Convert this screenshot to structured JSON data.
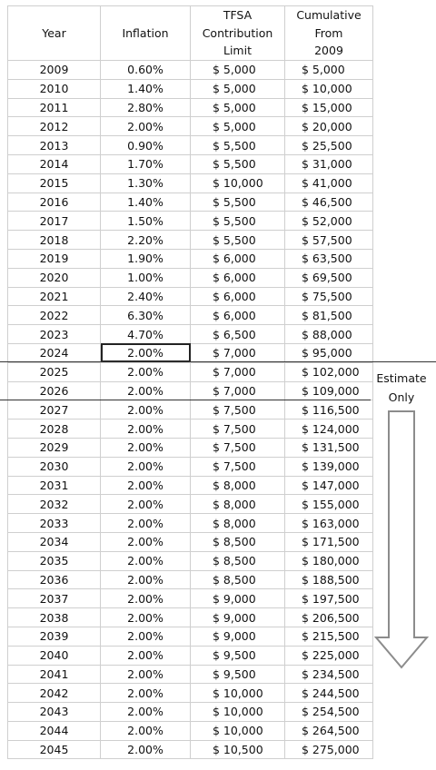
{
  "headers": {
    "year": "Year",
    "inflation": "Inflation",
    "limit": [
      "TFSA",
      "Contribution",
      "Limit"
    ],
    "cumulative": [
      "Cumulative",
      "From",
      "2009"
    ]
  },
  "rows": [
    {
      "year": "2009",
      "inflation": "0.60%",
      "limit": "$ 5,000",
      "cumulative": "$ 5,000"
    },
    {
      "year": "2010",
      "inflation": "1.40%",
      "limit": "$ 5,000",
      "cumulative": "$ 10,000"
    },
    {
      "year": "2011",
      "inflation": "2.80%",
      "limit": "$ 5,000",
      "cumulative": "$ 15,000"
    },
    {
      "year": "2012",
      "inflation": "2.00%",
      "limit": "$ 5,000",
      "cumulative": "$ 20,000"
    },
    {
      "year": "2013",
      "inflation": "0.90%",
      "limit": "$ 5,500",
      "cumulative": "$ 25,500"
    },
    {
      "year": "2014",
      "inflation": "1.70%",
      "limit": "$ 5,500",
      "cumulative": "$ 31,000"
    },
    {
      "year": "2015",
      "inflation": "1.30%",
      "limit": "$ 10,000",
      "cumulative": "$ 41,000"
    },
    {
      "year": "2016",
      "inflation": "1.40%",
      "limit": "$ 5,500",
      "cumulative": "$ 46,500"
    },
    {
      "year": "2017",
      "inflation": "1.50%",
      "limit": "$ 5,500",
      "cumulative": "$ 52,000"
    },
    {
      "year": "2018",
      "inflation": "2.20%",
      "limit": "$ 5,500",
      "cumulative": "$ 57,500"
    },
    {
      "year": "2019",
      "inflation": "1.90%",
      "limit": "$ 6,000",
      "cumulative": "$ 63,500"
    },
    {
      "year": "2020",
      "inflation": "1.00%",
      "limit": "$ 6,000",
      "cumulative": "$ 69,500"
    },
    {
      "year": "2021",
      "inflation": "2.40%",
      "limit": "$ 6,000",
      "cumulative": "$ 75,500"
    },
    {
      "year": "2022",
      "inflation": "6.30%",
      "limit": "$ 6,000",
      "cumulative": "$ 81,500"
    },
    {
      "year": "2023",
      "inflation": "4.70%",
      "limit": "$ 6,500",
      "cumulative": "$ 88,000"
    },
    {
      "year": "2024",
      "inflation": "2.00%",
      "limit": "$ 7,000",
      "cumulative": "$ 95,000"
    },
    {
      "year": "2025",
      "inflation": "2.00%",
      "limit": "$ 7,000",
      "cumulative": "$ 102,000"
    },
    {
      "year": "2026",
      "inflation": "2.00%",
      "limit": "$ 7,000",
      "cumulative": "$ 109,000"
    },
    {
      "year": "2027",
      "inflation": "2.00%",
      "limit": "$ 7,500",
      "cumulative": "$ 116,500"
    },
    {
      "year": "2028",
      "inflation": "2.00%",
      "limit": "$ 7,500",
      "cumulative": "$ 124,000"
    },
    {
      "year": "2029",
      "inflation": "2.00%",
      "limit": "$ 7,500",
      "cumulative": "$ 131,500"
    },
    {
      "year": "2030",
      "inflation": "2.00%",
      "limit": "$ 7,500",
      "cumulative": "$ 139,000"
    },
    {
      "year": "2031",
      "inflation": "2.00%",
      "limit": "$ 8,000",
      "cumulative": "$ 147,000"
    },
    {
      "year": "2032",
      "inflation": "2.00%",
      "limit": "$ 8,000",
      "cumulative": "$ 155,000"
    },
    {
      "year": "2033",
      "inflation": "2.00%",
      "limit": "$ 8,000",
      "cumulative": "$ 163,000"
    },
    {
      "year": "2034",
      "inflation": "2.00%",
      "limit": "$ 8,500",
      "cumulative": "$ 171,500"
    },
    {
      "year": "2035",
      "inflation": "2.00%",
      "limit": "$ 8,500",
      "cumulative": "$ 180,000"
    },
    {
      "year": "2036",
      "inflation": "2.00%",
      "limit": "$ 8,500",
      "cumulative": "$ 188,500"
    },
    {
      "year": "2037",
      "inflation": "2.00%",
      "limit": "$ 9,000",
      "cumulative": "$ 197,500"
    },
    {
      "year": "2038",
      "inflation": "2.00%",
      "limit": "$ 9,000",
      "cumulative": "$ 206,500"
    },
    {
      "year": "2039",
      "inflation": "2.00%",
      "limit": "$ 9,000",
      "cumulative": "$ 215,500"
    },
    {
      "year": "2040",
      "inflation": "2.00%",
      "limit": "$ 9,500",
      "cumulative": "$ 225,000"
    },
    {
      "year": "2041",
      "inflation": "2.00%",
      "limit": "$ 9,500",
      "cumulative": "$ 234,500"
    },
    {
      "year": "2042",
      "inflation": "2.00%",
      "limit": "$ 10,000",
      "cumulative": "$ 244,500"
    },
    {
      "year": "2043",
      "inflation": "2.00%",
      "limit": "$ 10,000",
      "cumulative": "$ 254,500"
    },
    {
      "year": "2044",
      "inflation": "2.00%",
      "limit": "$ 10,000",
      "cumulative": "$ 264,500"
    },
    {
      "year": "2045",
      "inflation": "2.00%",
      "limit": "$ 10,500",
      "cumulative": "$ 275,000"
    }
  ],
  "selected_cell": {
    "row": 15,
    "column": "inflation"
  },
  "estimate_note": [
    "Estimate",
    "Only"
  ],
  "arrow_icon": "down-arrow-icon"
}
